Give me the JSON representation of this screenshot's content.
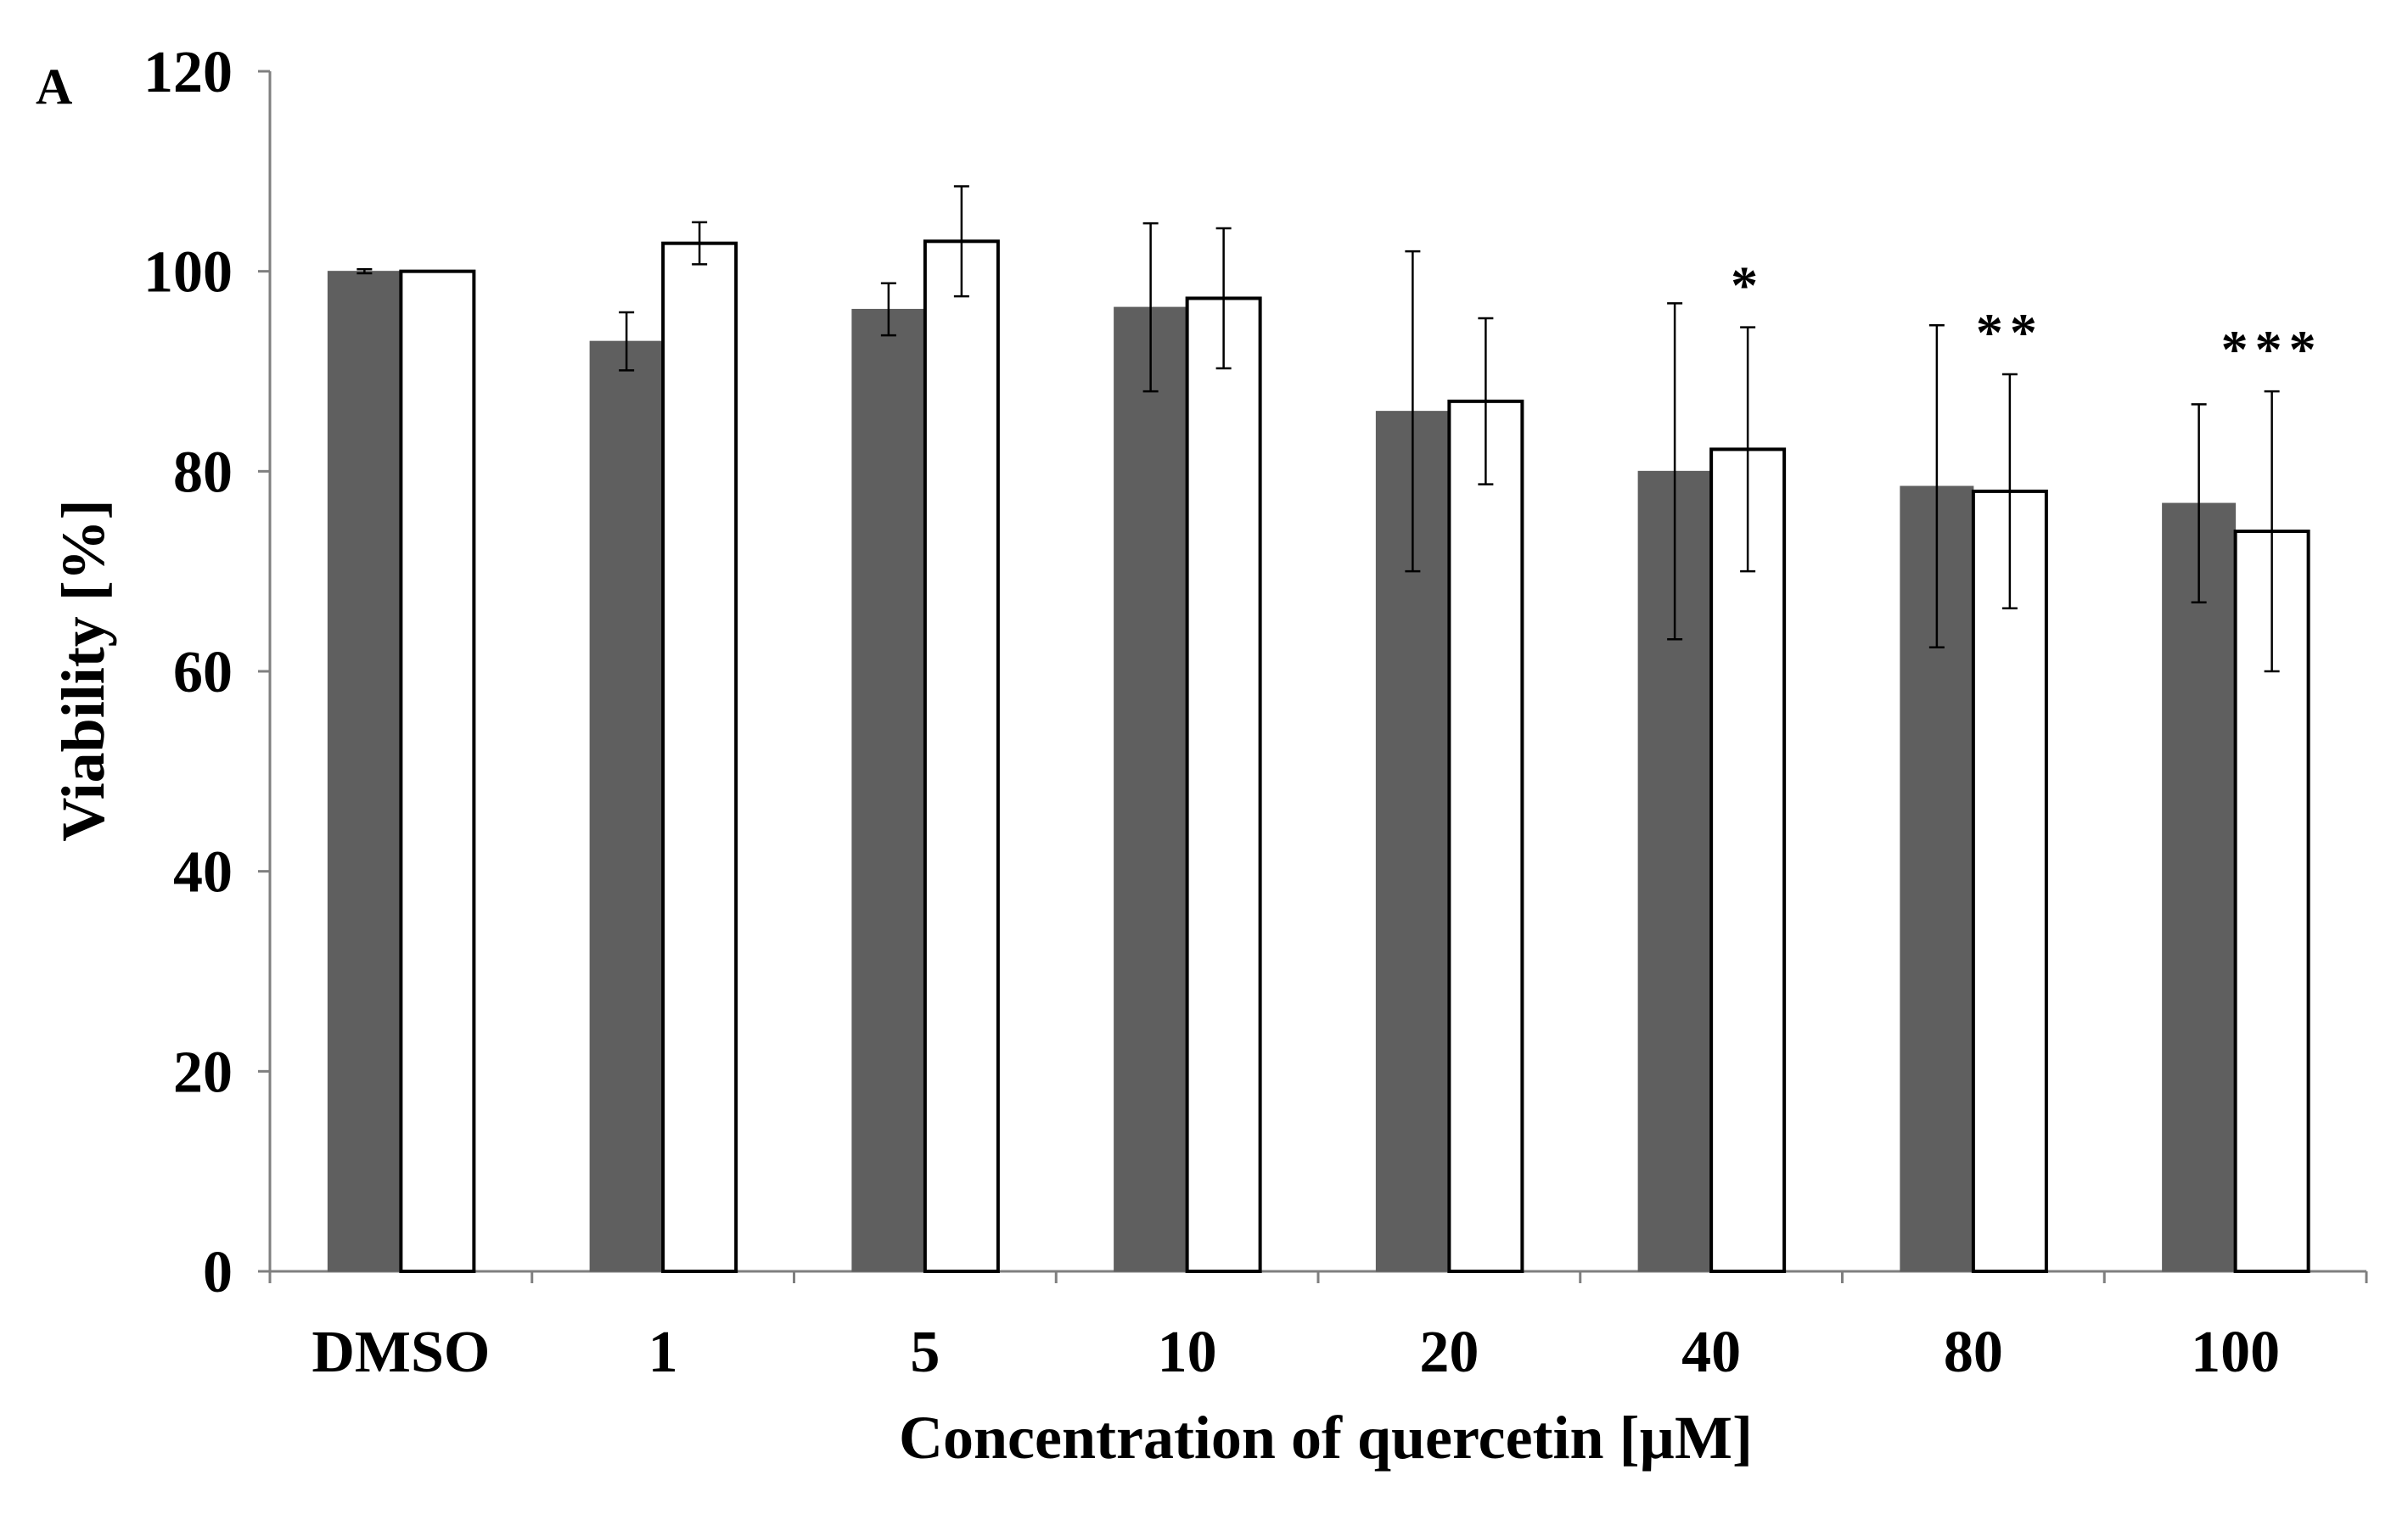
{
  "panel_label": "A",
  "chart_data": {
    "type": "bar",
    "title": "",
    "xlabel": "Concentration of quercetin [µM]",
    "ylabel": "Viability [%]",
    "ylim": [
      0,
      120
    ],
    "yticks": [
      0,
      20,
      40,
      60,
      80,
      100,
      120
    ],
    "grid": false,
    "categories": [
      "DMSO",
      "1",
      "5",
      "10",
      "20",
      "40",
      "80",
      "100"
    ],
    "series": [
      {
        "name": "series-dark",
        "color": "#5f5f5f",
        "values": [
          100,
          93,
          96.2,
          96.4,
          86,
          80,
          78.5,
          76.8
        ],
        "errors": [
          0.2,
          2.9,
          2.6,
          8.4,
          16,
          16.8,
          16.1,
          9.9
        ]
      },
      {
        "name": "series-white",
        "color": "#ffffff",
        "values": [
          100,
          102.8,
          103,
          97.3,
          87,
          82.2,
          78,
          74
        ],
        "errors": [
          0,
          2.1,
          5.5,
          7,
          8.3,
          12.2,
          11.7,
          14
        ]
      }
    ],
    "annotations": [
      {
        "category": "40",
        "text": "*"
      },
      {
        "category": "80",
        "text": "**"
      },
      {
        "category": "100",
        "text": "***"
      }
    ]
  }
}
